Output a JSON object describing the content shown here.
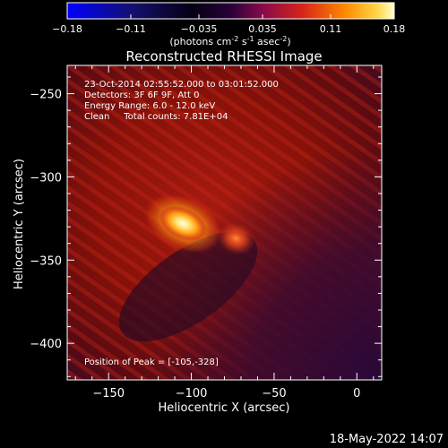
{
  "colorbar": {
    "ticks": [
      "-0.18",
      "-0.11",
      "-0.035",
      "0.035",
      "0.11",
      "0.18"
    ],
    "tick_values": [
      -0.18,
      -0.11,
      -0.035,
      0.035,
      0.11,
      0.18
    ],
    "range": [
      -0.18,
      0.18
    ],
    "unit_main": "(photons cm",
    "unit_exp1": "-2",
    "unit_mid": " s",
    "unit_exp2": "-1",
    "unit_mid2": " asec",
    "unit_exp3": "-2",
    "unit_end": ")",
    "colors": [
      "#0000ff",
      "#1a0a90",
      "#000000",
      "#5a0a78",
      "#c81e32",
      "#ff6a00",
      "#ffb400",
      "#ffffc8"
    ]
  },
  "chart_data": {
    "type": "heatmap",
    "title": "Reconstructed RHESSI Image",
    "xlabel": "Heliocentric X (arcsec)",
    "ylabel": "Heliocentric Y (arcsec)",
    "xlim": [
      -175,
      15
    ],
    "ylim": [
      -422,
      -233
    ],
    "x_ticks": [
      -150,
      -100,
      -50,
      0
    ],
    "y_ticks": [
      -250,
      -300,
      -350,
      -400
    ],
    "x_tick_labels": [
      "−150",
      "−100",
      "−50",
      "0"
    ],
    "y_tick_labels": [
      "−250",
      "−300",
      "−350",
      "−400"
    ],
    "annotations": [
      "23-Oct-2014 02:55:52.000 to 03:01:52.000",
      "Detectors: 3F 6F 9F, Att 0",
      "Energy Range: 6.0 - 12.0 keV",
      "Clean     Total counts: 7.81E+04"
    ],
    "peak_label": "Position of Peak = [-105,-328]",
    "peak": [
      -105,
      -328
    ],
    "sources": [
      {
        "x": -105,
        "y": -328,
        "value": 0.18
      },
      {
        "x": -73,
        "y": -337,
        "value": 0.09
      }
    ]
  },
  "timestamp": "18-May-2022 14:07"
}
